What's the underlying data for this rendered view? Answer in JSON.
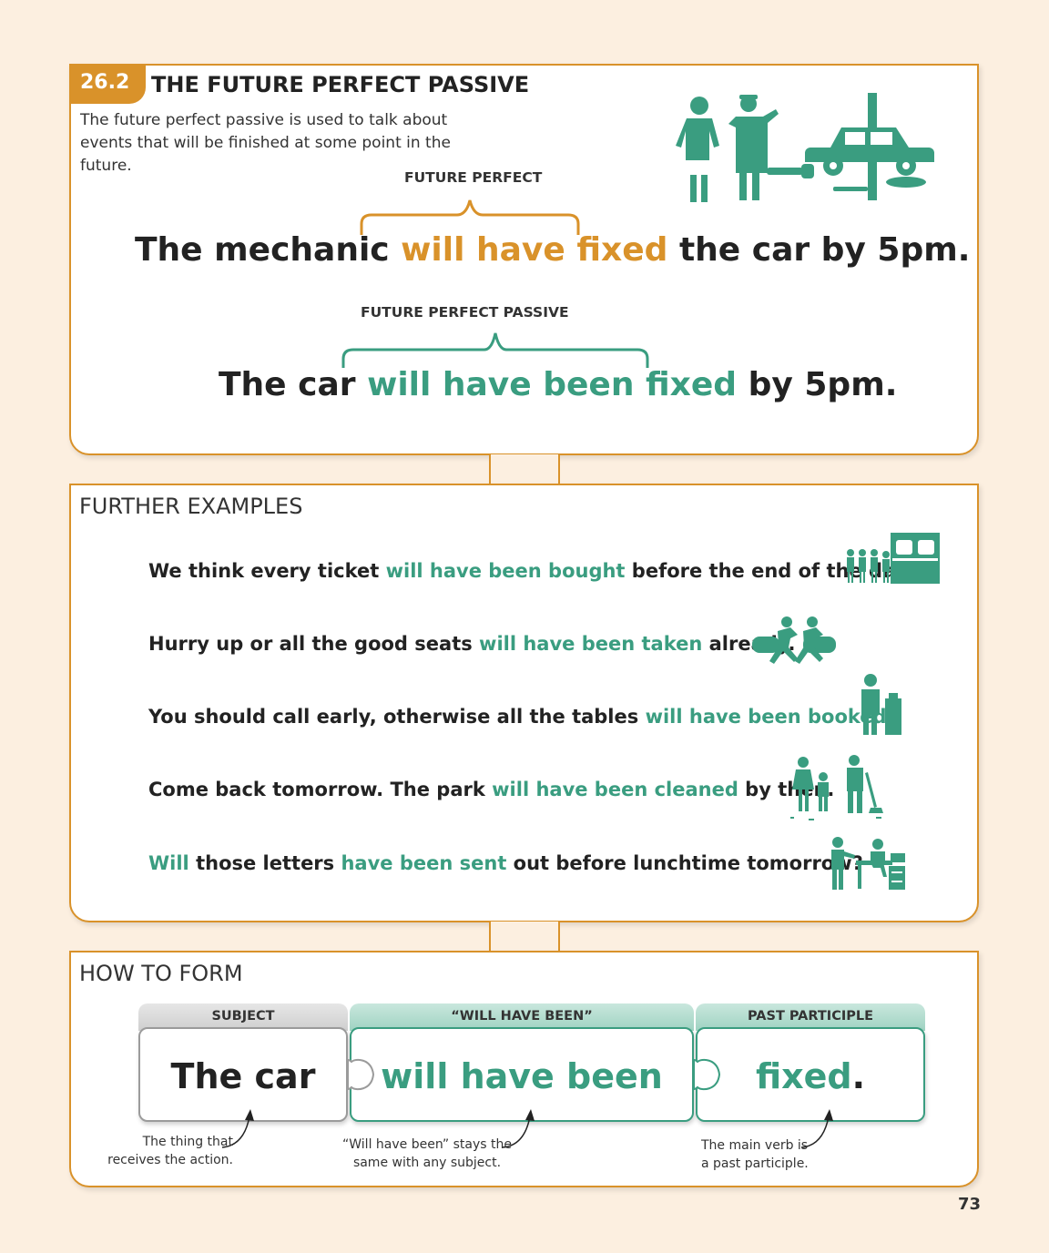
{
  "section": {
    "number": "26.2",
    "title": "THE FUTURE PERFECT PASSIVE",
    "intro": "The future perfect passive is used to talk about events that will be finished at some point in the future.",
    "active": {
      "label": "FUTURE PERFECT",
      "before": "The mechanic ",
      "highlight": "will have fixed",
      "after": " the car by 5pm."
    },
    "passive": {
      "label": "FUTURE PERFECT PASSIVE",
      "before": "The car ",
      "highlight": "will have been fixed",
      "after": " by 5pm."
    }
  },
  "examples": {
    "heading": "FURTHER EXAMPLES",
    "items": [
      {
        "a": "We think every ticket ",
        "b": "will have been bought",
        "c": " before the end of the day."
      },
      {
        "a": "Hurry up or all the good seats ",
        "b": "will have been taken",
        "c": " already."
      },
      {
        "a": "You should call early, otherwise all the tables ",
        "b": "will have been booked",
        "c": "."
      },
      {
        "a": "Come back tomorrow. The park ",
        "b": "will have been cleaned",
        "c": " by then."
      },
      {
        "a": "",
        "b": "Will",
        "c": " those letters ",
        "d": "have been sent",
        "e": " out before lunchtime tomorrow?"
      }
    ]
  },
  "form": {
    "heading": "HOW TO FORM",
    "subject_tab": "SUBJECT",
    "subject_text": "The car",
    "aux_tab": "“WILL HAVE BEEN”",
    "aux_text": "will have been",
    "pp_tab": "PAST PARTICIPLE",
    "pp_text": "fixed",
    "pp_dot": ".",
    "note_subject": "The thing that\nreceives the action.",
    "note_aux": "“Will have been” stays the\nsame with any subject.",
    "note_pp": "The main verb is\na past participle."
  },
  "page_number": "73",
  "colors": {
    "orange": "#d9922a",
    "teal": "#3a9d80"
  }
}
